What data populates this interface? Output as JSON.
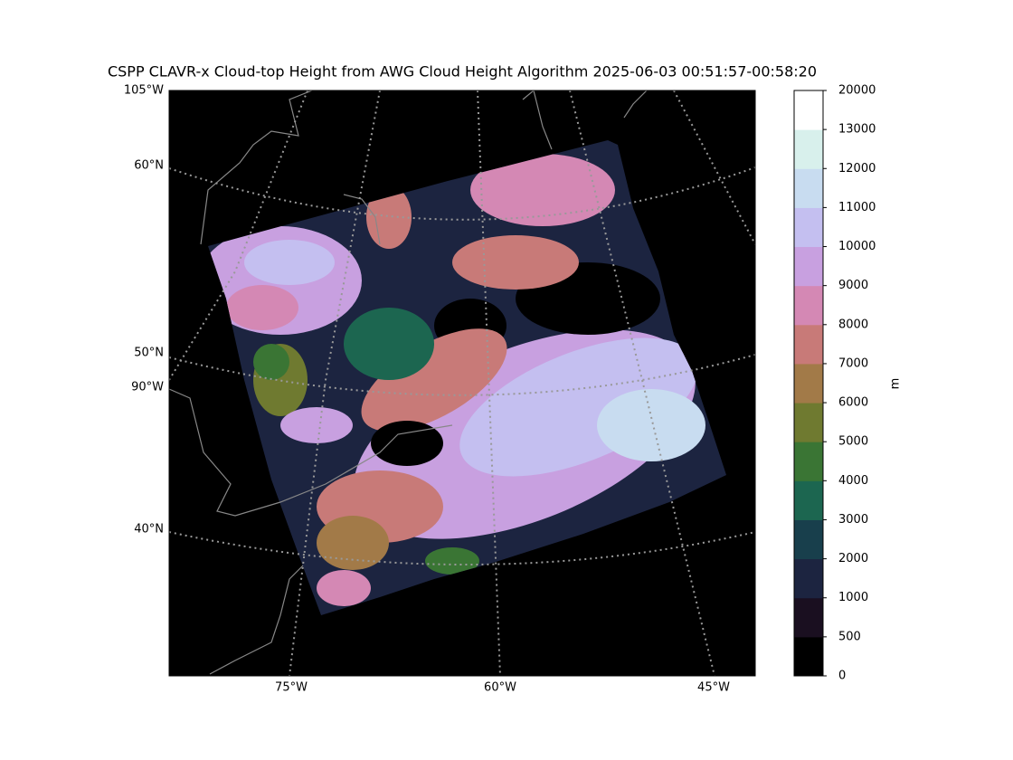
{
  "title": "CSPP CLAVR-x Cloud-top Height from AWG Cloud Height Algorithm 2025-06-03 00:51:57-00:58:20",
  "map": {
    "lat_labels": [
      "105°W",
      "60°N",
      "50°N",
      "90°W",
      "40°N"
    ],
    "lon_labels": [
      "75°W",
      "60°W",
      "45°W"
    ]
  },
  "colorbar": {
    "label": "m",
    "ticks": [
      0,
      500,
      1000,
      2000,
      3000,
      4000,
      5000,
      6000,
      7000,
      8000,
      9000,
      10000,
      11000,
      12000,
      13000,
      20000
    ],
    "colors": [
      "#000000",
      "#1a0f20",
      "#1c2440",
      "#183f4c",
      "#1c6650",
      "#3a7534",
      "#6f7a30",
      "#a27a48",
      "#c87a78",
      "#d488b4",
      "#c8a0e0",
      "#c4bff0",
      "#c8dcf0",
      "#d8f0ec",
      "#ffffff"
    ]
  }
}
